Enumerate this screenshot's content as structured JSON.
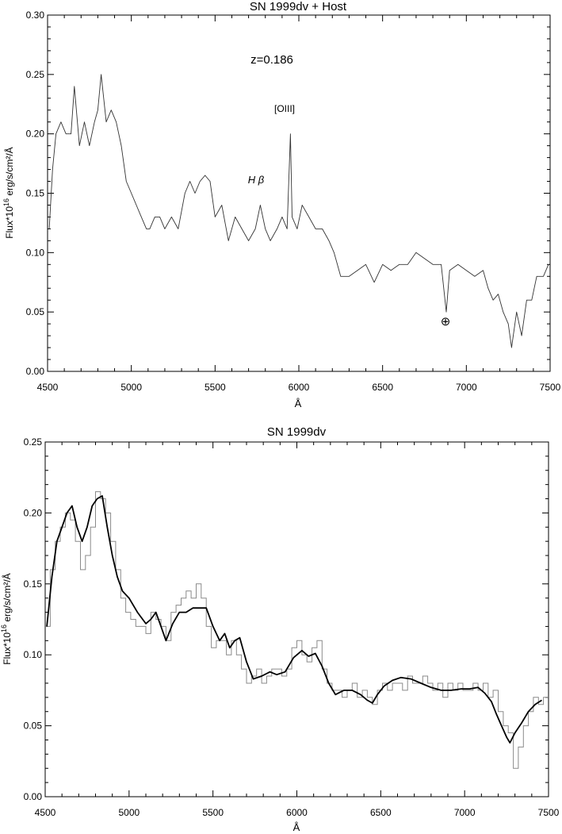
{
  "chart_data": [
    {
      "type": "line",
      "title": "SN 1999dv + Host",
      "xlabel": "Å",
      "ylabel": "Flux*10<sup>16</sup> erg/s/cm²/Å",
      "ylabel_parts": {
        "pre": "Flux*10",
        "sup": "16",
        "post": " erg/s/cm²/Å"
      },
      "xlim": [
        4500,
        7500
      ],
      "ylim": [
        0.0,
        0.3
      ],
      "xticks": [
        "4500",
        "5000",
        "5500",
        "6000",
        "6500",
        "7000",
        "7500"
      ],
      "yticks": [
        "0.00",
        "0.05",
        "0.10",
        "0.15",
        "0.20",
        "0.25",
        "0.30"
      ],
      "grid": false,
      "annotations": {
        "redshift": "z=0.186",
        "oiii": "[OIII]",
        "hbeta": "H β",
        "telluric": "⊕"
      },
      "series": [
        {
          "style": "noisy-thin",
          "x": [
            4510,
            4530,
            4550,
            4580,
            4610,
            4640,
            4660,
            4690,
            4720,
            4750,
            4780,
            4800,
            4820,
            4850,
            4880,
            4910,
            4940,
            4970,
            5000,
            5030,
            5060,
            5090,
            5110,
            5140,
            5170,
            5200,
            5240,
            5280,
            5320,
            5350,
            5380,
            5410,
            5440,
            5470,
            5500,
            5540,
            5580,
            5620,
            5660,
            5700,
            5740,
            5770,
            5800,
            5830,
            5870,
            5900,
            5930,
            5950,
            5960,
            5990,
            6020,
            6060,
            6100,
            6140,
            6180,
            6210,
            6250,
            6300,
            6350,
            6400,
            6450,
            6500,
            6550,
            6600,
            6650,
            6700,
            6750,
            6800,
            6850,
            6880,
            6900,
            6950,
            7000,
            7050,
            7100,
            7130,
            7160,
            7190,
            7220,
            7250,
            7270,
            7300,
            7330,
            7360,
            7390,
            7420,
            7460,
            7490
          ],
          "values": [
            0.12,
            0.17,
            0.2,
            0.21,
            0.2,
            0.2,
            0.24,
            0.19,
            0.21,
            0.19,
            0.21,
            0.22,
            0.25,
            0.21,
            0.22,
            0.21,
            0.19,
            0.16,
            0.15,
            0.14,
            0.13,
            0.12,
            0.12,
            0.13,
            0.13,
            0.12,
            0.13,
            0.12,
            0.15,
            0.16,
            0.15,
            0.16,
            0.165,
            0.16,
            0.13,
            0.14,
            0.11,
            0.13,
            0.12,
            0.11,
            0.12,
            0.14,
            0.12,
            0.11,
            0.12,
            0.13,
            0.12,
            0.2,
            0.13,
            0.12,
            0.14,
            0.13,
            0.12,
            0.12,
            0.11,
            0.1,
            0.08,
            0.08,
            0.085,
            0.09,
            0.075,
            0.09,
            0.085,
            0.09,
            0.09,
            0.1,
            0.095,
            0.09,
            0.09,
            0.05,
            0.085,
            0.09,
            0.085,
            0.08,
            0.085,
            0.07,
            0.06,
            0.065,
            0.05,
            0.04,
            0.02,
            0.05,
            0.03,
            0.06,
            0.06,
            0.08,
            0.08,
            0.09
          ]
        }
      ]
    },
    {
      "type": "line",
      "title": "SN 1999dv",
      "xlabel": "Å",
      "ylabel": "Flux*10<sup>16</sup> erg/s/cm²/Å",
      "ylabel_parts": {
        "pre": "Flux*10",
        "sup": "16",
        "post": " erg/s/cm²/Å"
      },
      "xlim": [
        4500,
        7500
      ],
      "ylim": [
        0.0,
        0.25
      ],
      "xticks": [
        "4500",
        "5000",
        "5500",
        "6000",
        "6500",
        "7000",
        "7500"
      ],
      "yticks": [
        "0.00",
        "0.05",
        "0.10",
        "0.15",
        "0.20",
        "0.25"
      ],
      "grid": false,
      "series": [
        {
          "style": "histogram-thin",
          "x": [
            4500,
            4530,
            4560,
            4590,
            4620,
            4650,
            4680,
            4710,
            4740,
            4770,
            4800,
            4830,
            4860,
            4890,
            4920,
            4950,
            4980,
            5010,
            5040,
            5070,
            5100,
            5130,
            5160,
            5190,
            5220,
            5250,
            5280,
            5310,
            5340,
            5370,
            5400,
            5430,
            5460,
            5490,
            5520,
            5550,
            5580,
            5610,
            5640,
            5670,
            5700,
            5730,
            5760,
            5790,
            5820,
            5850,
            5880,
            5910,
            5940,
            5970,
            6000,
            6030,
            6060,
            6090,
            6120,
            6150,
            6180,
            6210,
            6240,
            6270,
            6300,
            6330,
            6360,
            6390,
            6420,
            6450,
            6480,
            6510,
            6540,
            6570,
            6600,
            6630,
            6660,
            6690,
            6720,
            6750,
            6780,
            6810,
            6840,
            6870,
            6900,
            6930,
            6960,
            6990,
            7020,
            7050,
            7080,
            7110,
            7140,
            7170,
            7200,
            7230,
            7260,
            7290,
            7320,
            7350,
            7380,
            7410,
            7440,
            7470
          ],
          "values": [
            0.12,
            0.16,
            0.18,
            0.19,
            0.2,
            0.195,
            0.18,
            0.16,
            0.17,
            0.19,
            0.215,
            0.21,
            0.2,
            0.18,
            0.16,
            0.14,
            0.13,
            0.125,
            0.12,
            0.12,
            0.115,
            0.13,
            0.125,
            0.12,
            0.11,
            0.13,
            0.135,
            0.14,
            0.145,
            0.14,
            0.15,
            0.14,
            0.12,
            0.105,
            0.11,
            0.11,
            0.1,
            0.11,
            0.1,
            0.09,
            0.08,
            0.085,
            0.09,
            0.08,
            0.085,
            0.09,
            0.09,
            0.085,
            0.09,
            0.105,
            0.11,
            0.1,
            0.095,
            0.105,
            0.11,
            0.09,
            0.08,
            0.075,
            0.075,
            0.07,
            0.075,
            0.08,
            0.07,
            0.075,
            0.07,
            0.065,
            0.075,
            0.08,
            0.075,
            0.08,
            0.08,
            0.075,
            0.085,
            0.08,
            0.08,
            0.085,
            0.08,
            0.075,
            0.08,
            0.07,
            0.08,
            0.075,
            0.08,
            0.075,
            0.075,
            0.08,
            0.075,
            0.08,
            0.07,
            0.075,
            0.06,
            0.05,
            0.045,
            0.02,
            0.035,
            0.05,
            0.06,
            0.07,
            0.065,
            0.07
          ]
        },
        {
          "style": "smooth-thick",
          "x": [
            4510,
            4540,
            4570,
            4600,
            4630,
            4660,
            4690,
            4720,
            4750,
            4780,
            4810,
            4840,
            4870,
            4900,
            4930,
            4960,
            5000,
            5050,
            5100,
            5130,
            5160,
            5190,
            5220,
            5260,
            5300,
            5340,
            5380,
            5420,
            5460,
            5500,
            5540,
            5570,
            5600,
            5630,
            5660,
            5700,
            5740,
            5790,
            5840,
            5880,
            5930,
            5980,
            6030,
            6070,
            6110,
            6150,
            6190,
            6230,
            6280,
            6330,
            6380,
            6420,
            6450,
            6480,
            6520,
            6570,
            6620,
            6680,
            6740,
            6800,
            6860,
            6920,
            6980,
            7030,
            7080,
            7120,
            7160,
            7190,
            7220,
            7250,
            7270,
            7300,
            7340,
            7380,
            7420,
            7460
          ],
          "values": [
            0.12,
            0.155,
            0.18,
            0.19,
            0.2,
            0.205,
            0.19,
            0.18,
            0.19,
            0.205,
            0.21,
            0.212,
            0.19,
            0.17,
            0.155,
            0.145,
            0.14,
            0.13,
            0.122,
            0.125,
            0.13,
            0.12,
            0.11,
            0.122,
            0.13,
            0.13,
            0.133,
            0.133,
            0.133,
            0.12,
            0.11,
            0.115,
            0.105,
            0.11,
            0.112,
            0.095,
            0.083,
            0.085,
            0.088,
            0.086,
            0.088,
            0.098,
            0.103,
            0.099,
            0.101,
            0.092,
            0.08,
            0.072,
            0.075,
            0.075,
            0.072,
            0.068,
            0.066,
            0.072,
            0.078,
            0.082,
            0.084,
            0.083,
            0.08,
            0.077,
            0.075,
            0.075,
            0.076,
            0.076,
            0.077,
            0.073,
            0.067,
            0.058,
            0.05,
            0.042,
            0.038,
            0.045,
            0.052,
            0.06,
            0.065,
            0.068
          ]
        }
      ]
    }
  ]
}
